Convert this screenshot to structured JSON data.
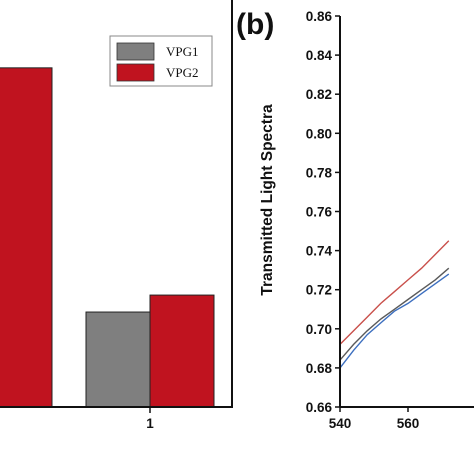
{
  "chart_data": [
    {
      "type": "bar",
      "categories": [
        "",
        "1"
      ],
      "series": [
        {
          "name": "VPG1",
          "color": "#7f7f7f",
          "values": [
            null,
            0.28
          ]
        },
        {
          "name": "VPG2",
          "color": "#c0131f",
          "values": [
            1.0,
            0.33
          ]
        }
      ],
      "xtick_labels": [
        "1"
      ],
      "ylim": [
        0,
        1.2
      ],
      "legend": "top-right"
    },
    {
      "type": "line",
      "panel_label": "(b)",
      "ylabel": "Transmitted Light Spectra",
      "xlim": [
        540,
        572
      ],
      "ylim": [
        0.66,
        0.86
      ],
      "x_ticks": [
        540,
        560
      ],
      "x_tick_labels": [
        "540",
        "560"
      ],
      "y_ticks": [
        0.66,
        0.68,
        0.7,
        0.72,
        0.74,
        0.76,
        0.78,
        0.8,
        0.82,
        0.84,
        0.86
      ],
      "y_tick_labels": [
        "0.66",
        "0.68",
        "0.70",
        "0.72",
        "0.74",
        "0.76",
        "0.78",
        "0.80",
        "0.82",
        "0.84",
        "0.86"
      ],
      "series": [
        {
          "color": "#c9504b",
          "x": [
            540,
            544,
            548,
            552,
            556,
            560,
            564,
            568,
            572
          ],
          "y": [
            0.692,
            0.699,
            0.706,
            0.713,
            0.719,
            0.725,
            0.731,
            0.738,
            0.745
          ]
        },
        {
          "color": "#5a5a5a",
          "x": [
            540,
            544,
            548,
            552,
            556,
            560,
            564,
            568,
            572
          ],
          "y": [
            0.684,
            0.692,
            0.699,
            0.705,
            0.71,
            0.715,
            0.72,
            0.725,
            0.731
          ]
        },
        {
          "color": "#3d6fbf",
          "x": [
            540,
            544,
            548,
            552,
            556,
            560,
            564,
            568,
            572
          ],
          "y": [
            0.68,
            0.689,
            0.697,
            0.703,
            0.709,
            0.713,
            0.718,
            0.723,
            0.728
          ]
        }
      ]
    }
  ]
}
